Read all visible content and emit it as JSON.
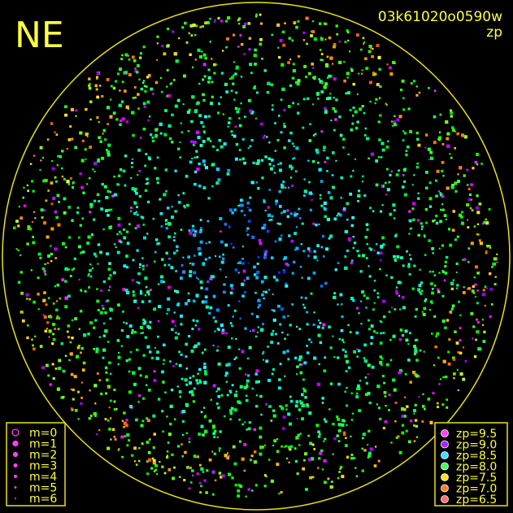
{
  "corner_label": "NE",
  "image_id": "03k61020o0590w",
  "mode": "zp",
  "magnitude_legend": [
    "m=0",
    "m=1",
    "m=2",
    "m=3",
    "m=4",
    "m=5",
    "m=6"
  ],
  "zp_legend": [
    {
      "label": "zp=9.5",
      "color": "#ff40ff"
    },
    {
      "label": "zp=9.0",
      "color": "#b020ff"
    },
    {
      "label": "zp=8.5",
      "color": "#40e0ff"
    },
    {
      "label": "zp=8.0",
      "color": "#40ff60"
    },
    {
      "label": "zp=7.5",
      "color": "#ffe020"
    },
    {
      "label": "zp=7.0",
      "color": "#ff8020"
    },
    {
      "label": "zp=6.5",
      "color": "#ff7070"
    }
  ]
}
